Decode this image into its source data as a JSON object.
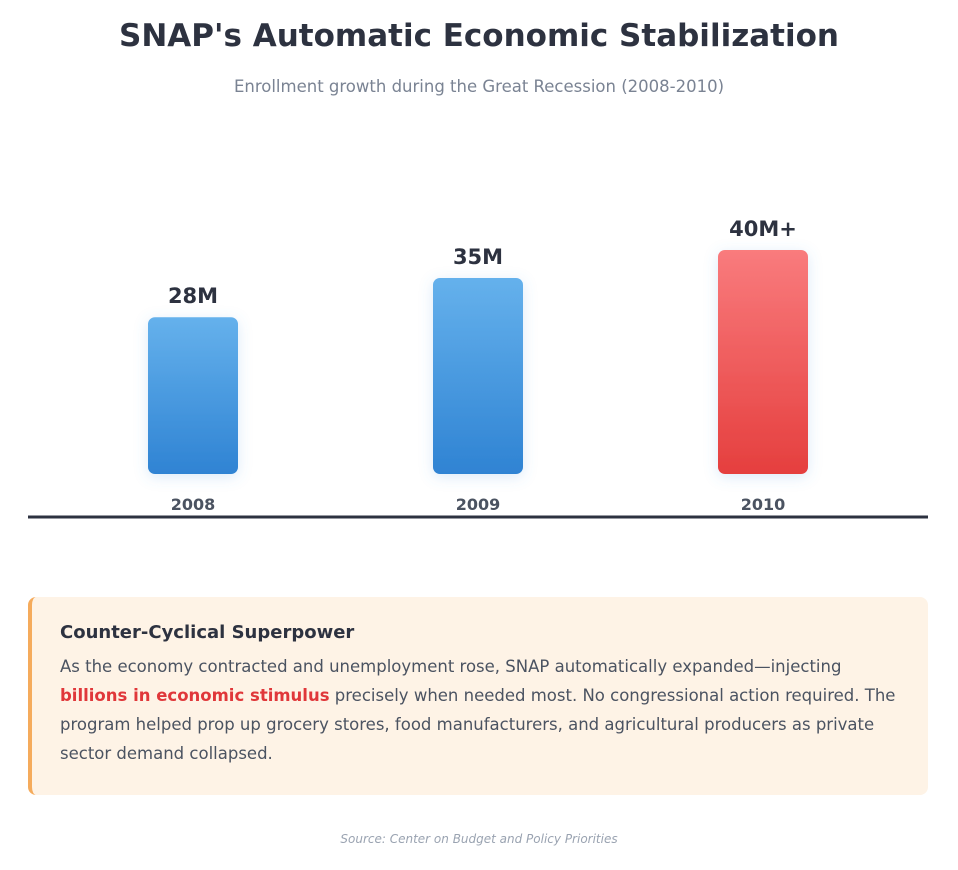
{
  "header": {
    "title": "SNAP's Automatic Economic Stabilization",
    "subtitle": "Enrollment growth during the Great Recession (2008-2010)"
  },
  "chart_data": {
    "type": "bar",
    "title": "",
    "categories": [
      "2008",
      "2009",
      "2010"
    ],
    "values": [
      28,
      35,
      40
    ],
    "value_labels": [
      "28M",
      "35M",
      "40M+"
    ],
    "unit": "M",
    "ylim": [
      0,
      40
    ],
    "grid": false,
    "colors": {
      "default_top": "#65b1ec",
      "default_bottom": "#2f83d3",
      "highlight_top": "#f97b7d",
      "highlight_bottom": "#e53f3e",
      "axis": "#2d3240"
    },
    "highlight_index": 2
  },
  "callout": {
    "title": "Counter-Cyclical Superpower",
    "body_before": "As the economy contracted and unemployment rose, SNAP automatically expanded—injecting ",
    "body_highlight": "billions in economic stimulus",
    "body_after": " precisely when needed most. No congressional action required. The program helped prop up grocery stores, food manufacturers, and agricultural producers as private sector demand collapsed.",
    "accent_color": "#f5ab5c",
    "background_color": "#fef3e6",
    "highlight_color": "#e0373a"
  },
  "footer": {
    "source": "Source: Center on Budget and Policy Priorities"
  }
}
